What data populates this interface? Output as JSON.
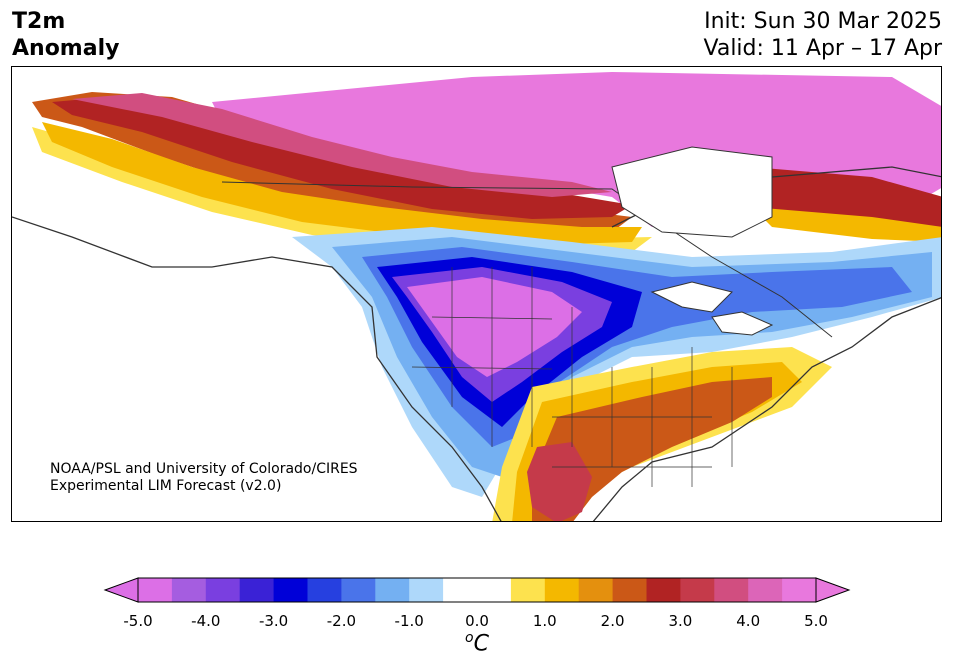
{
  "header": {
    "title_line1": "T2m",
    "title_line2": "Anomaly",
    "init": "Init: Sun 30 Mar 2025",
    "valid": "Valid: 11 Apr – 17 Apr"
  },
  "credit": {
    "line1": "NOAA/PSL and University of Colorado/CIRES",
    "line2": "Experimental LIM Forecast (v2.0)"
  },
  "colorbar": {
    "ticks": [
      "-5.0",
      "-4.0",
      "-3.0",
      "-2.0",
      "-1.0",
      "0.0",
      "1.0",
      "2.0",
      "3.0",
      "4.0",
      "5.0"
    ],
    "unit_base": "C",
    "unit_sup": "o",
    "colors": [
      "#dc6fe6",
      "#a55de0",
      "#7a3fe0",
      "#3a22d6",
      "#0000d8",
      "#2640e0",
      "#4a74ea",
      "#74b0f2",
      "#aed8fa",
      "#ffffff",
      "#ffffff",
      "#fde24e",
      "#f4b800",
      "#e4900e",
      "#cb5817",
      "#b12323",
      "#c53a4a",
      "#d14e80",
      "#dc65b8",
      "#e878dd"
    ],
    "extend_low": "#dc6fe6",
    "extend_high": "#e878dd"
  },
  "map": {
    "land": "#ffffff",
    "lines": "#333333"
  }
}
